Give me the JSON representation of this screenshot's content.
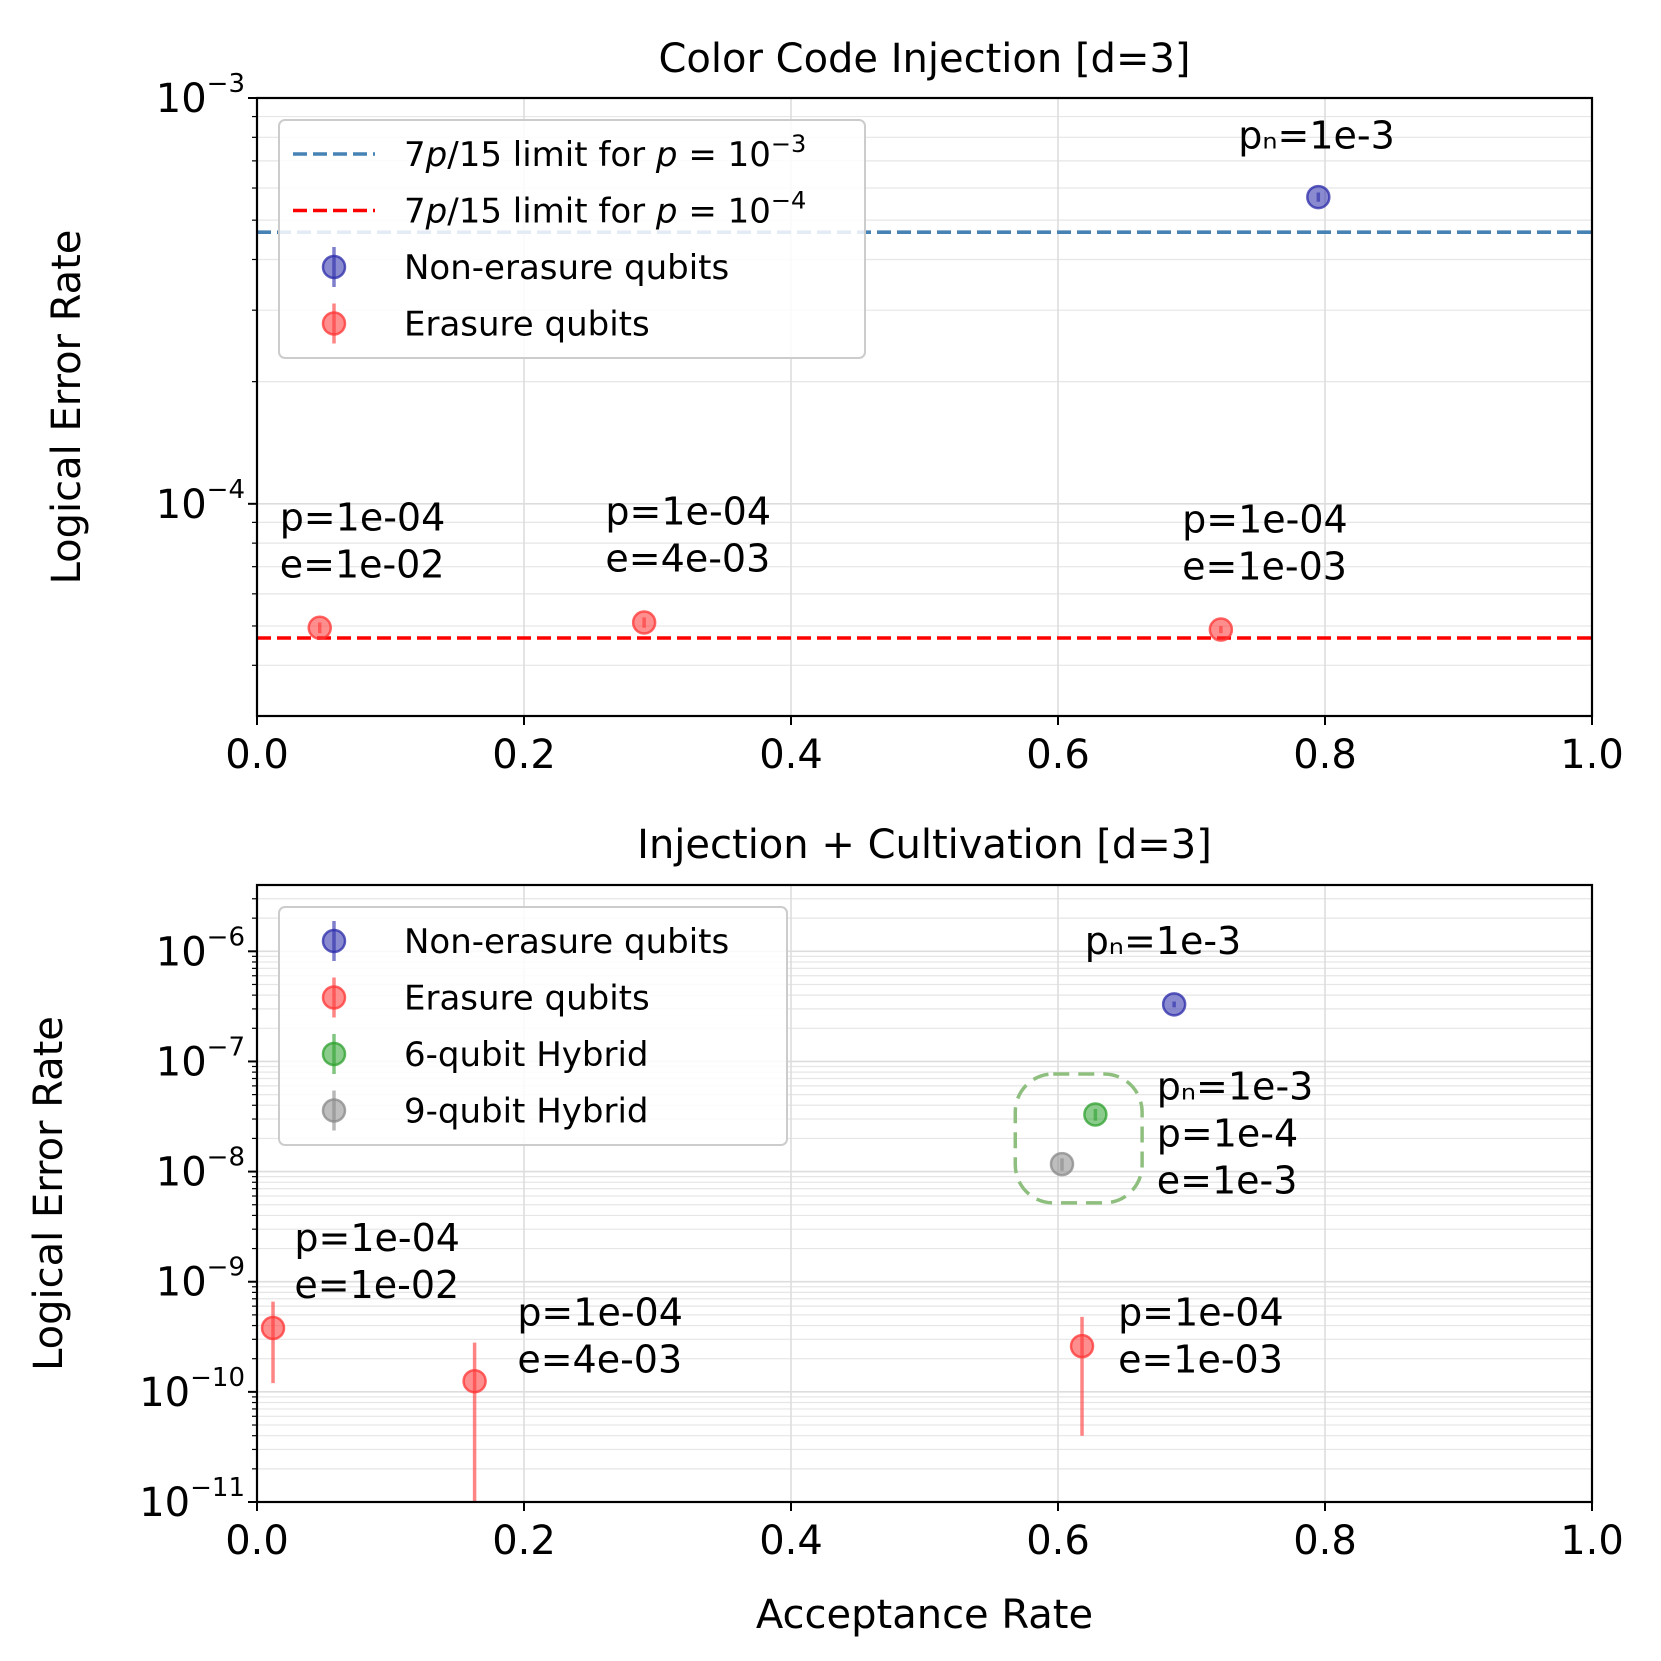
{
  "chart_data": [
    {
      "type": "scatter",
      "title": "Color Code Injection [d=3]",
      "xlabel": "",
      "ylabel": "Logical Error Rate",
      "xlim": [
        0.0,
        1.0
      ],
      "ylim": [
        3e-05,
        0.001
      ],
      "yscale": "log",
      "x_ticks": [
        "0.0",
        "0.2",
        "0.4",
        "0.6",
        "0.8",
        "1.0"
      ],
      "y_ticks": [
        {
          "base": "10",
          "exp": "−3",
          "value": 0.001
        },
        {
          "base": "10",
          "exp": "−4",
          "value": 0.0001
        }
      ],
      "hlines": [
        {
          "name": "7p/15 limit for p = 10^-3",
          "label_pre": "7",
          "label_p": "p",
          "label_mid": "/15 limit for ",
          "label_p2": "p",
          "label_eq": " = 10",
          "label_exp": "−3",
          "value": 0.000467,
          "color": "#4682b4",
          "style": "dashed"
        },
        {
          "name": "7p/15 limit for p = 10^-4",
          "label_pre": "7",
          "label_p": "p",
          "label_mid": "/15 limit for ",
          "label_p2": "p",
          "label_eq": " = 10",
          "label_exp": "−4",
          "value": 4.67e-05,
          "color": "#ff0000",
          "style": "dashed"
        }
      ],
      "legend_position": "upper-left",
      "series": [
        {
          "name": "Non-erasure qubits",
          "color": "#2a2aaa",
          "points": [
            {
              "x": 0.795,
              "y": 0.00057,
              "err_lo": 1.5e-05,
              "err_hi": 1.5e-05
            }
          ]
        },
        {
          "name": "Erasure qubits",
          "color": "#ff3333",
          "points": [
            {
              "x": 0.047,
              "y": 4.95e-05,
              "err_lo": 1.5e-06,
              "err_hi": 1.5e-06
            },
            {
              "x": 0.29,
              "y": 5.1e-05,
              "err_lo": 1.5e-06,
              "err_hi": 1.5e-06
            },
            {
              "x": 0.722,
              "y": 4.9e-05,
              "err_lo": 1e-06,
              "err_hi": 1e-06
            }
          ]
        }
      ],
      "annotations": [
        {
          "lines": [
            "pₙ=1e-3"
          ],
          "x": 0.735,
          "y": 0.00075
        },
        {
          "lines": [
            "p=1e-04",
            "e=1e-02"
          ],
          "x": 0.017,
          "y": 8.6e-05
        },
        {
          "lines": [
            "p=1e-04",
            "e=4e-03"
          ],
          "x": 0.261,
          "y": 8.9e-05
        },
        {
          "lines": [
            "p=1e-04",
            "e=1e-03"
          ],
          "x": 0.693,
          "y": 8.5e-05
        }
      ]
    },
    {
      "type": "scatter",
      "title": "Injection + Cultivation [d=3]",
      "xlabel": "Acceptance Rate",
      "ylabel": "Logical Error Rate",
      "xlim": [
        0.0,
        1.0
      ],
      "ylim": [
        1e-11,
        4e-06
      ],
      "yscale": "log",
      "x_ticks": [
        "0.0",
        "0.2",
        "0.4",
        "0.6",
        "0.8",
        "1.0"
      ],
      "y_ticks": [
        {
          "base": "10",
          "exp": "−6",
          "value": 1e-06
        },
        {
          "base": "10",
          "exp": "−7",
          "value": 1e-07
        },
        {
          "base": "10",
          "exp": "−8",
          "value": 1e-08
        },
        {
          "base": "10",
          "exp": "−9",
          "value": 1e-09
        },
        {
          "base": "10",
          "exp": "−10",
          "value": 1e-10
        },
        {
          "base": "10",
          "exp": "−11",
          "value": 1e-11
        }
      ],
      "legend_position": "upper-left",
      "series": [
        {
          "name": "Non-erasure qubits",
          "color": "#2a2aaa",
          "points": [
            {
              "x": 0.687,
              "y": 3.3e-07,
              "err_lo": 2e-08,
              "err_hi": 2e-08
            }
          ]
        },
        {
          "name": "Erasure qubits",
          "color": "#ff3333",
          "points": [
            {
              "x": 0.012,
              "y": 3.8e-10,
              "err_lo": 2.6e-10,
              "err_hi": 2.8e-10
            },
            {
              "x": 0.163,
              "y": 1.25e-10,
              "err_lo": 1.15e-10,
              "err_hi": 1.55e-10
            },
            {
              "x": 0.618,
              "y": 2.6e-10,
              "err_lo": 2.2e-10,
              "err_hi": 2.2e-10
            }
          ]
        },
        {
          "name": "6-qubit Hybrid",
          "color": "#2ca02c",
          "points": [
            {
              "x": 0.628,
              "y": 3.3e-08,
              "err_lo": 4e-09,
              "err_hi": 4e-09
            }
          ]
        },
        {
          "name": "9-qubit Hybrid",
          "color": "#888888",
          "points": [
            {
              "x": 0.603,
              "y": 1.17e-08,
              "err_lo": 1.5e-09,
              "err_hi": 1.5e-09
            }
          ]
        }
      ],
      "highlight_box": {
        "color": "#8fbf7f",
        "x0": 0.568,
        "x1": 0.663,
        "y0": 5.2e-09,
        "y1": 7.7e-08,
        "style": "dashed",
        "note": "rounded rectangle around hybrid points"
      },
      "annotations": [
        {
          "lines": [
            "pₙ=1e-3"
          ],
          "x": 0.62,
          "y": 9.5e-07
        },
        {
          "lines": [
            "pₙ=1e-3",
            "p=1e-4",
            "e=1e-3"
          ],
          "x": 0.674,
          "y": 4.5e-08
        },
        {
          "lines": [
            "p=1e-04",
            "e=1e-02"
          ],
          "x": 0.028,
          "y": 1.9e-09
        },
        {
          "lines": [
            "p=1e-04",
            "e=4e-03"
          ],
          "x": 0.195,
          "y": 4e-10
        },
        {
          "lines": [
            "p=1e-04",
            "e=1e-03"
          ],
          "x": 0.645,
          "y": 4e-10
        }
      ]
    }
  ]
}
